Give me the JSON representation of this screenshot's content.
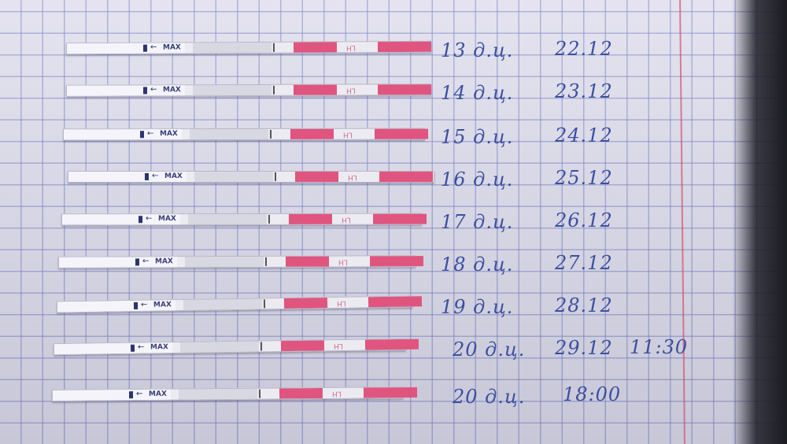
{
  "strip_labels": {
    "max": "MAX",
    "arrow": "←",
    "hormone": "LH"
  },
  "colors": {
    "paper": "#e2e1ee",
    "grid": "#7882c8",
    "test_pad": "#e0557f",
    "ink": "#3c4fa0",
    "margin": "#d2506e"
  },
  "rows": [
    {
      "day": "13 д.ц.",
      "date": "22.12",
      "time": ""
    },
    {
      "day": "14 д.ц.",
      "date": "23.12",
      "time": ""
    },
    {
      "day": "15 д.ц.",
      "date": "24.12",
      "time": ""
    },
    {
      "day": "16 д.ц.",
      "date": "25.12",
      "time": ""
    },
    {
      "day": "17 д.ц.",
      "date": "26.12",
      "time": ""
    },
    {
      "day": "18 д.ц.",
      "date": "27.12",
      "time": ""
    },
    {
      "day": "19 д.ц.",
      "date": "28.12",
      "time": ""
    },
    {
      "day": "20 д.ц.",
      "date": "29.12",
      "time": "11:30"
    },
    {
      "day": "20 д.ц.",
      "date": "",
      "time": "18:00"
    }
  ]
}
